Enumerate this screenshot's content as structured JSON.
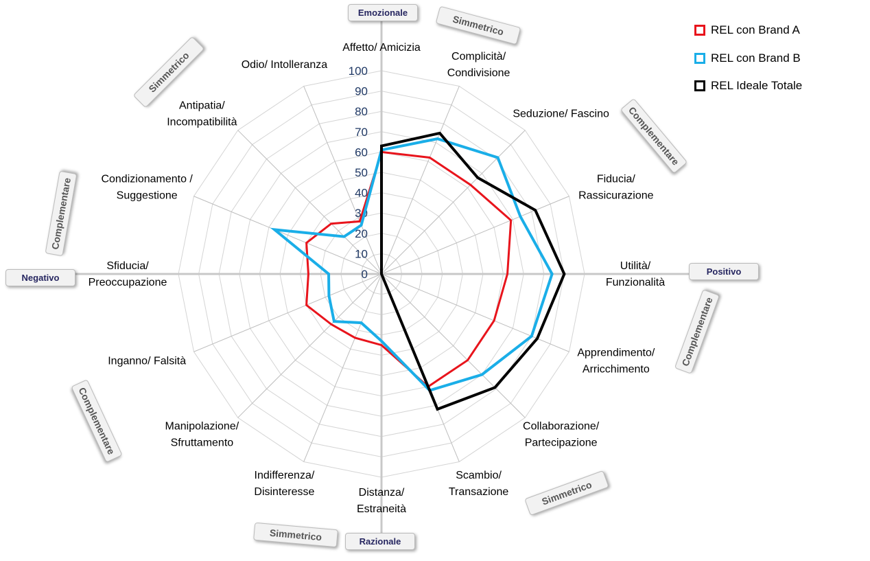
{
  "chart_data": {
    "type": "radar",
    "axes": [
      "Affetto/ Amicizia",
      "Complicità/ Condivisione",
      "Seduzione/ Fascino",
      "Fiducia/ Rassicurazione",
      "Utilità/ Funzionalità",
      "Apprendimento/ Arricchimento",
      "Collaborazione/ Partecipazione",
      "Scambio/ Transazione",
      "Distanza/ Estraneità",
      "Indifferenza/ Disinteresse",
      "Manipolazione/ Sfruttamento",
      "Inganno/ Falsità",
      "Sfiducia/ Preoccupazione",
      "Condizionamento / Suggestione",
      "Antipatia/ Incompatibilità",
      "Odio/ Intolleranza"
    ],
    "ticks": [
      "0",
      "10",
      "20",
      "30",
      "40",
      "50",
      "60",
      "70",
      "80",
      "90",
      "100"
    ],
    "rlim": [
      0,
      100
    ],
    "series": [
      {
        "name": "REL con Brand A",
        "color": "#e8141c",
        "values": [
          60,
          62,
          62,
          69,
          62,
          60,
          60,
          60,
          35,
          34,
          35,
          40,
          36,
          40,
          35,
          28
        ]
      },
      {
        "name": "REL con Brand B",
        "color": "#1aaee8",
        "values": [
          61,
          72,
          81,
          74,
          84,
          80,
          70,
          62,
          33,
          26,
          33,
          28,
          26,
          57,
          26,
          26
        ]
      },
      {
        "name": "REL Ideale Totale",
        "color": "#000000",
        "values": [
          63,
          75,
          67,
          82,
          90,
          83,
          79,
          72,
          0,
          0,
          0,
          0,
          0,
          0,
          0,
          0
        ]
      }
    ],
    "legend_position": "top-right"
  },
  "directions": {
    "top": "Emozionale",
    "right": "Positivo",
    "bottom": "Razionale",
    "left": "Negativo"
  },
  "relations": [
    "Simmetrico",
    "Complementare",
    "Complementare",
    "Simmetrico",
    "Simmetrico",
    "Complementare",
    "Complementare",
    "Simmetrico"
  ]
}
